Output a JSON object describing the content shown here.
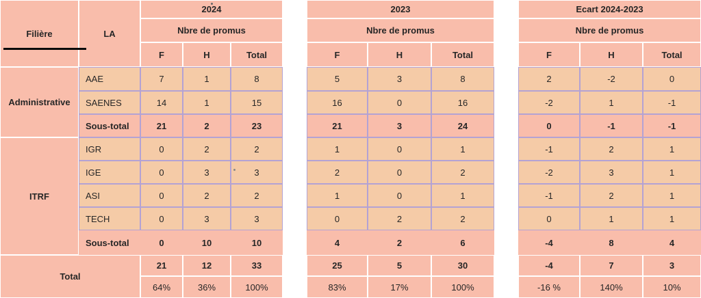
{
  "table": {
    "corner": {
      "filiere": "Filière",
      "la": "LA"
    },
    "groups": [
      {
        "title": "2024",
        "subtitle": "Nbre de promus",
        "cols": [
          "F",
          "H",
          "Total"
        ]
      },
      {
        "title": "2023",
        "subtitle": "Nbre de promus",
        "cols": [
          "F",
          "H",
          "Total"
        ]
      },
      {
        "title": "Ecart 2024-2023",
        "subtitle": "Nbre de promus",
        "cols": [
          "F",
          "H",
          "Total"
        ]
      }
    ],
    "sections": [
      {
        "name": "Administrative",
        "rows": [
          {
            "la": "AAE",
            "g0": [
              "7",
              "1",
              "8"
            ],
            "g1": [
              "5",
              "3",
              "8"
            ],
            "g2": [
              "2",
              "-2",
              "0"
            ]
          },
          {
            "la": "SAENES",
            "g0": [
              "14",
              "1",
              "15"
            ],
            "g1": [
              "16",
              "0",
              "16"
            ],
            "g2": [
              "-2",
              "1",
              "-1"
            ]
          }
        ],
        "subtotal": {
          "label": "Sous-total",
          "g0": [
            "21",
            "2",
            "23"
          ],
          "g1": [
            "21",
            "3",
            "24"
          ],
          "g2": [
            "0",
            "-1",
            "-1"
          ]
        }
      },
      {
        "name": "ITRF",
        "rows": [
          {
            "la": "IGR",
            "g0": [
              "0",
              "2",
              "2"
            ],
            "g1": [
              "1",
              "0",
              "1"
            ],
            "g2": [
              "-1",
              "2",
              "1"
            ]
          },
          {
            "la": "IGE",
            "g0": [
              "0",
              "3",
              "3"
            ],
            "g1": [
              "2",
              "0",
              "2"
            ],
            "g2": [
              "-2",
              "3",
              "1"
            ]
          },
          {
            "la": "ASI",
            "g0": [
              "0",
              "2",
              "2"
            ],
            "g1": [
              "1",
              "0",
              "1"
            ],
            "g2": [
              "-1",
              "2",
              "1"
            ]
          },
          {
            "la": "TECH",
            "g0": [
              "0",
              "3",
              "3"
            ],
            "g1": [
              "0",
              "2",
              "2"
            ],
            "g2": [
              "0",
              "1",
              "1"
            ]
          }
        ],
        "subtotal": {
          "label": "Sous-total",
          "g0": [
            "0",
            "10",
            "10"
          ],
          "g1": [
            "4",
            "2",
            "6"
          ],
          "g2": [
            "-4",
            "8",
            "4"
          ]
        }
      }
    ],
    "total": {
      "label": "Total",
      "counts": {
        "g0": [
          "21",
          "12",
          "33"
        ],
        "g1": [
          "25",
          "5",
          "30"
        ],
        "g2": [
          "-4",
          "7",
          "3"
        ]
      },
      "percents": {
        "g0": [
          "64%",
          "36%",
          "100%"
        ],
        "g1": [
          "83%",
          "17%",
          "100%"
        ],
        "g2": [
          "-16 %",
          "140%",
          "10%"
        ]
      }
    },
    "colors": {
      "salmon": "#f9bdab",
      "peach": "#f5cba7",
      "purple_border": "#b3a2d4"
    }
  }
}
